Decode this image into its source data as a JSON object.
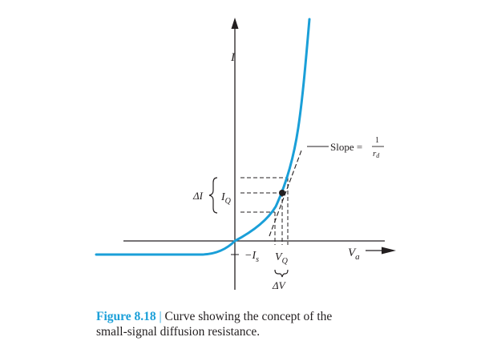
{
  "axes": {
    "y_label": "I",
    "x_label": "V",
    "x_label_sub": "a"
  },
  "ticks": {
    "saturation_label": "−I",
    "saturation_sub": "s",
    "q_point_voltage": "V",
    "q_point_voltage_sub": "Q",
    "q_point_current": "I",
    "q_point_current_sub": "Q"
  },
  "annotations": {
    "delta_i": "ΔI",
    "delta_v": "ΔV",
    "slope_text": "Slope =",
    "slope_numerator": "1",
    "slope_denominator": "r",
    "slope_denominator_sub": "d"
  },
  "caption": {
    "figure_label": "Figure 8.18",
    "separator": "|",
    "line1": "Curve showing the concept of the",
    "line2": "small-signal diffusion resistance."
  },
  "colors": {
    "curve": "#1a9fd8",
    "axes": "#231f20",
    "caption_label": "#1a9fd8"
  }
}
